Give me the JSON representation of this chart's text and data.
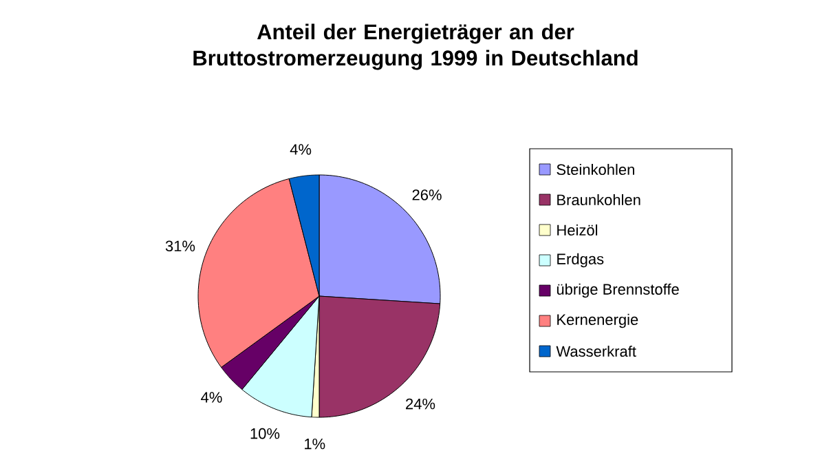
{
  "chart_data": {
    "type": "pie",
    "title": "Anteil der Energieträger an der Bruttostromerzeugung 1999 in Deutschland",
    "categories": [
      "Steinkohlen",
      "Braunkohlen",
      "Heizöl",
      "Erdgas",
      "übrige Brennstoffe",
      "Kernenergie",
      "Wasserkraft"
    ],
    "values": [
      26,
      24,
      1,
      10,
      4,
      31,
      4
    ],
    "value_labels": [
      "26%",
      "24%",
      "1%",
      "10%",
      "4%",
      "31%",
      "4%"
    ],
    "colors": [
      "#9999ff",
      "#993366",
      "#ffffcc",
      "#ccffff",
      "#660066",
      "#ff8080",
      "#0066cc"
    ],
    "legend": "right"
  }
}
